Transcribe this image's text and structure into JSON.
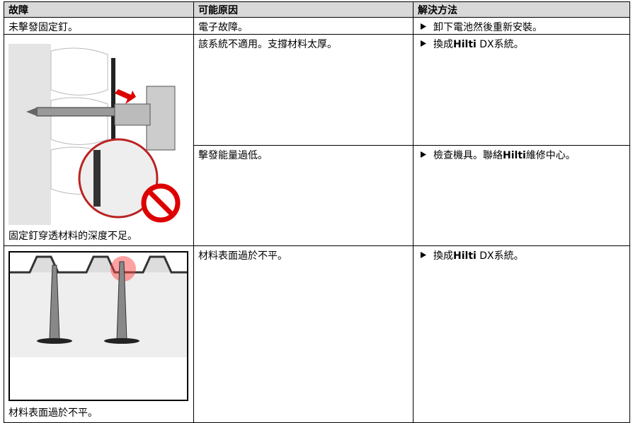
{
  "table": {
    "header": [
      "故障",
      "可能原因",
      "解決方法"
    ],
    "rows": [
      {
        "fault": "未擊發固定釘。",
        "causes": [
          {
            "cause": "電子故障。",
            "solution": [
              "卸下電池然後重新安裝。"
            ]
          }
        ]
      },
      {
        "fault": "固定釘穿透材料的深度不足。",
        "causes": [
          {
            "cause": "該系統不適用。支撐材料太厚。",
            "solution": [
              "換成",
              "Hilti",
              " DX系統。"
            ]
          },
          {
            "cause": "擊發能量過低。",
            "solution": [
              "檢查機具。聯絡",
              "Hilti",
              "維修中心。"
            ]
          }
        ]
      },
      {
        "fault": "材料表面過於不平。",
        "causes": [
          {
            "cause": "材料表面過於不平。",
            "solution": [
              "換成",
              "Hilti",
              " DX系統。"
            ]
          }
        ]
      }
    ]
  }
}
